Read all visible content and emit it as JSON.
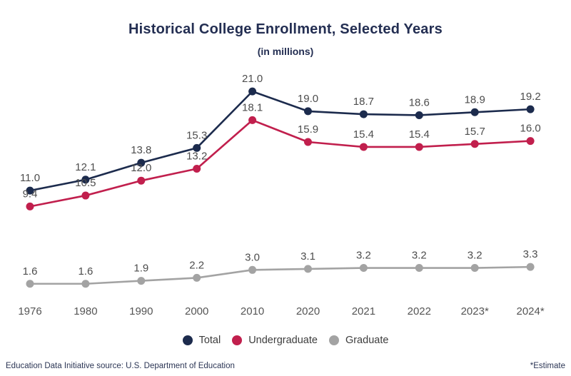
{
  "chart_data": {
    "type": "line",
    "title": "Historical College Enrollment, Selected Years",
    "subtitle": "(in millions)",
    "categories": [
      "1976",
      "1980",
      "1990",
      "2000",
      "2010",
      "2020",
      "2021",
      "2022",
      "2023*",
      "2024*"
    ],
    "series": [
      {
        "name": "Total",
        "color": "#1c2b4d",
        "values": [
          11.0,
          12.1,
          13.8,
          15.3,
          21.0,
          19.0,
          18.7,
          18.6,
          18.9,
          19.2
        ]
      },
      {
        "name": "Undergraduate",
        "color": "#c11f4d",
        "values": [
          9.4,
          10.5,
          12.0,
          13.2,
          18.1,
          15.9,
          15.4,
          15.4,
          15.7,
          16.0
        ]
      },
      {
        "name": "Graduate",
        "color": "#a3a3a3",
        "values": [
          1.6,
          1.6,
          1.9,
          2.2,
          3.0,
          3.1,
          3.2,
          3.2,
          3.2,
          3.3
        ]
      }
    ],
    "ylim": [
      0,
      22
    ],
    "grid": false,
    "legend_position": "bottom",
    "data_labels": true,
    "value_label_color": "#4d4d4d",
    "axis_label_color": "#555555"
  },
  "footer": {
    "source": "Education Data Initiative source: U.S. Department of Education",
    "estimate_note": "*Estimate"
  }
}
